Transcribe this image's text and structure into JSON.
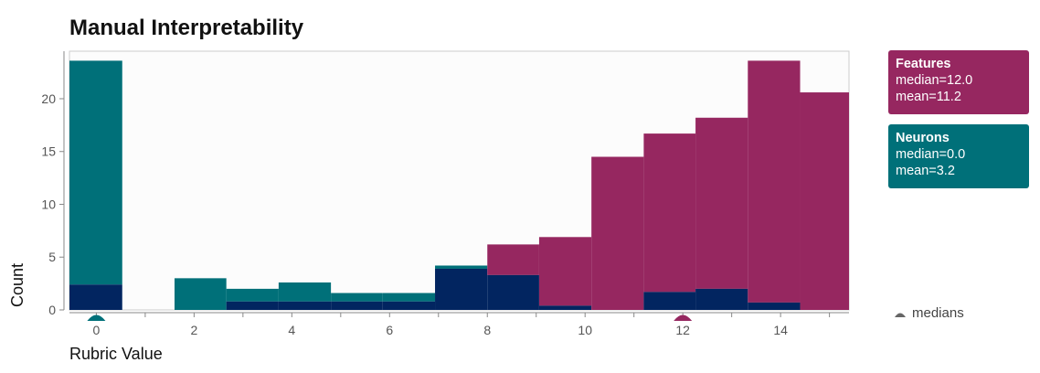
{
  "colors": {
    "features": "#962760",
    "neurons": "#007079",
    "overlap": "#022560",
    "axis": "#888888",
    "text": "#555555",
    "plot_bg": "#fcfcfc"
  },
  "chart_data": {
    "type": "bar",
    "title": "Manual Interpretability",
    "xlabel": "Rubric Value",
    "ylabel": "Count",
    "xlim": [
      -0.55,
      15.4
    ],
    "ylim": [
      0,
      24.5
    ],
    "x_ticks": [
      0,
      2,
      4,
      6,
      8,
      10,
      12,
      14
    ],
    "y_ticks": [
      0,
      5,
      10,
      15,
      20
    ],
    "bins": [
      {
        "x0": -0.55,
        "x1": 0.53
      },
      {
        "x0": 0.53,
        "x1": 1.6
      },
      {
        "x0": 1.6,
        "x1": 2.66
      },
      {
        "x0": 2.66,
        "x1": 3.73
      },
      {
        "x0": 3.73,
        "x1": 4.8
      },
      {
        "x0": 4.8,
        "x1": 5.86
      },
      {
        "x0": 5.86,
        "x1": 6.93
      },
      {
        "x0": 6.93,
        "x1": 8.0
      },
      {
        "x0": 8.0,
        "x1": 9.06
      },
      {
        "x0": 9.06,
        "x1": 10.13
      },
      {
        "x0": 10.13,
        "x1": 11.2
      },
      {
        "x0": 11.2,
        "x1": 12.26
      },
      {
        "x0": 12.26,
        "x1": 13.33
      },
      {
        "x0": 13.33,
        "x1": 14.4
      },
      {
        "x0": 14.4,
        "x1": 15.4
      }
    ],
    "series": [
      {
        "name": "Features",
        "values": [
          2.4,
          0,
          0,
          0.8,
          0.8,
          0.8,
          0.8,
          3.9,
          6.2,
          6.9,
          14.5,
          16.7,
          18.2,
          23.6,
          20.6
        ]
      },
      {
        "name": "Neurons",
        "values": [
          23.6,
          0,
          3.0,
          2.0,
          2.6,
          1.6,
          1.6,
          4.2,
          3.3,
          0.4,
          0,
          1.7,
          2.0,
          0.7,
          0
        ]
      }
    ],
    "medians": {
      "Features": 12.0,
      "Neurons": 0.0
    }
  },
  "legend": {
    "features": {
      "title": "Features",
      "median": "median=12.0",
      "mean": "mean=11.2"
    },
    "neurons": {
      "title": "Neurons",
      "median": "median=0.0",
      "mean": "mean=3.2"
    },
    "medians_label": "medians"
  }
}
